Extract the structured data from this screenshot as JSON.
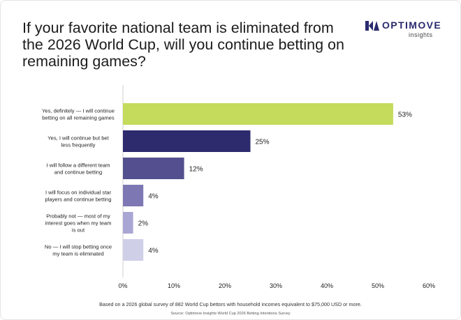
{
  "header": {
    "title": "If your favorite national team is eliminated from the 2026 World Cup, will you continue betting on remaining games?",
    "logo_name": "OPTIMOVE",
    "logo_sub": "insights",
    "logo_icon": "optimove-logo-icon"
  },
  "footer": {
    "note": "Based on a 2026 global survey of 882 World Cup bettors with household incomes equivalent to $75,000 USD or more.",
    "source": "Source: Optimove Insights World Cup 2026 Betting Intentions Survey"
  },
  "chart_data": {
    "type": "bar",
    "orientation": "horizontal",
    "title": "If your favorite national team is eliminated from the 2026 World Cup, will you continue betting on remaining games?",
    "categories": [
      [
        "Yes, definitely — I will continue",
        "betting on all remaining games"
      ],
      [
        "Yes, I will continue but bet",
        "less frequently"
      ],
      [
        "I will follow a different team",
        "and continue betting"
      ],
      [
        "I will focus on individual star",
        "players and continue betting"
      ],
      [
        "Probably not — most of my",
        "interest goes when my team",
        "is out"
      ],
      [
        "No — I will stop betting once",
        "my team is eliminated"
      ]
    ],
    "values": [
      53,
      25,
      12,
      4,
      2,
      4
    ],
    "value_labels": [
      "53%",
      "25%",
      "12%",
      "4%",
      "2%",
      "4%"
    ],
    "colors": [
      "#c4db5c",
      "#2d2a6e",
      "#544f8e",
      "#7d78b4",
      "#a9a6d4",
      "#d0cfe8"
    ],
    "xlim": [
      0,
      60
    ],
    "xticks": [
      0,
      10,
      20,
      30,
      40,
      50,
      60
    ],
    "xtick_labels": [
      "0%",
      "10%",
      "20%",
      "30%",
      "40%",
      "50%",
      "60%"
    ],
    "grid": false,
    "legend": "none"
  }
}
